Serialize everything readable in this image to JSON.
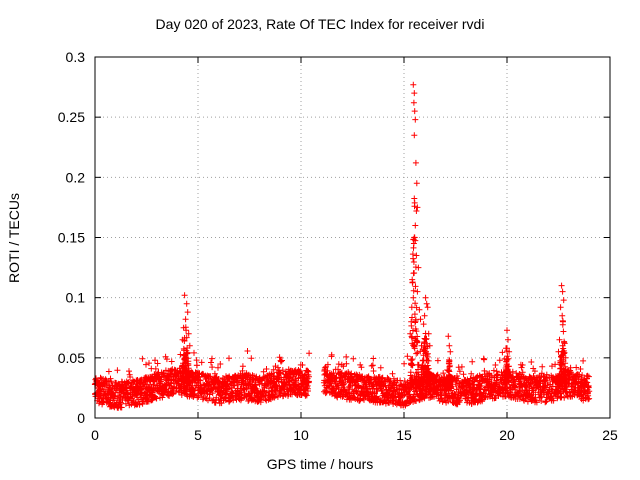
{
  "chart_data": {
    "type": "scatter",
    "title": "Day 020 of 2023, Rate Of TEC Index for receiver rvdi",
    "xlabel": "GPS time / hours",
    "ylabel": "ROTI / TECUs",
    "xlim": [
      0,
      25
    ],
    "ylim": [
      0,
      0.3
    ],
    "xticks": [
      "0",
      "5",
      "10",
      "15",
      "20",
      "25"
    ],
    "yticks": [
      "0",
      "0.05",
      "0.1",
      "0.15",
      "0.2",
      "0.25",
      "0.3"
    ],
    "grid": true,
    "marker": "+",
    "color": "#ff0000",
    "data_gap_hours": [
      10.4,
      11.1
    ],
    "baseline": [
      [
        0.0,
        0.025
      ],
      [
        1.0,
        0.02
      ],
      [
        2.0,
        0.022
      ],
      [
        3.0,
        0.028
      ],
      [
        3.5,
        0.03
      ],
      [
        4.0,
        0.032
      ],
      [
        5.0,
        0.028
      ],
      [
        6.0,
        0.024
      ],
      [
        7.0,
        0.027
      ],
      [
        8.0,
        0.025
      ],
      [
        9.0,
        0.03
      ],
      [
        10.0,
        0.03
      ],
      [
        10.4,
        0.03
      ],
      [
        11.1,
        0.032
      ],
      [
        12.0,
        0.028
      ],
      [
        13.0,
        0.026
      ],
      [
        14.0,
        0.024
      ],
      [
        15.0,
        0.022
      ],
      [
        16.0,
        0.028
      ],
      [
        17.0,
        0.025
      ],
      [
        18.0,
        0.022
      ],
      [
        19.0,
        0.027
      ],
      [
        20.0,
        0.03
      ],
      [
        21.0,
        0.025
      ],
      [
        22.0,
        0.025
      ],
      [
        23.0,
        0.03
      ],
      [
        24.0,
        0.025
      ]
    ],
    "peaks": [
      {
        "x": [
          4.2,
          4.6
        ],
        "y_max": 0.102
      },
      {
        "x": [
          15.3,
          15.7
        ],
        "y_max": 0.277
      },
      {
        "x": [
          15.8,
          16.3
        ],
        "y_max": 0.1
      },
      {
        "x": [
          17.1,
          17.3
        ],
        "y_max": 0.068
      },
      {
        "x": [
          19.9,
          20.1
        ],
        "y_max": 0.073
      },
      {
        "x": [
          22.5,
          22.9
        ],
        "y_max": 0.11
      }
    ],
    "points": [
      [
        4.35,
        0.102
      ],
      [
        4.45,
        0.095
      ],
      [
        4.5,
        0.088
      ],
      [
        4.4,
        0.082
      ],
      [
        4.3,
        0.075
      ],
      [
        4.55,
        0.07
      ],
      [
        4.25,
        0.065
      ],
      [
        4.6,
        0.06
      ],
      [
        15.45,
        0.277
      ],
      [
        15.5,
        0.27
      ],
      [
        15.48,
        0.262
      ],
      [
        15.52,
        0.255
      ],
      [
        15.55,
        0.248
      ],
      [
        15.5,
        0.235
      ],
      [
        15.58,
        0.212
      ],
      [
        15.62,
        0.195
      ],
      [
        15.65,
        0.175
      ],
      [
        15.6,
        0.172
      ],
      [
        15.55,
        0.16
      ],
      [
        15.52,
        0.15
      ],
      [
        15.48,
        0.145
      ],
      [
        15.6,
        0.135
      ],
      [
        15.7,
        0.125
      ],
      [
        15.4,
        0.115
      ],
      [
        15.45,
        0.1
      ],
      [
        15.65,
        0.105
      ],
      [
        15.75,
        0.09
      ],
      [
        15.8,
        0.082
      ],
      [
        15.35,
        0.08
      ],
      [
        15.3,
        0.07
      ],
      [
        15.4,
        0.062
      ],
      [
        15.85,
        0.06
      ],
      [
        16.05,
        0.1
      ],
      [
        16.1,
        0.095
      ],
      [
        16.15,
        0.092
      ],
      [
        16.0,
        0.085
      ],
      [
        15.95,
        0.078
      ],
      [
        16.2,
        0.07
      ],
      [
        16.25,
        0.06
      ],
      [
        17.15,
        0.068
      ],
      [
        17.2,
        0.06
      ],
      [
        17.25,
        0.055
      ],
      [
        20.0,
        0.073
      ],
      [
        20.05,
        0.065
      ],
      [
        19.95,
        0.058
      ],
      [
        20.1,
        0.055
      ],
      [
        22.65,
        0.11
      ],
      [
        22.7,
        0.105
      ],
      [
        22.75,
        0.098
      ],
      [
        22.6,
        0.092
      ],
      [
        22.68,
        0.085
      ],
      [
        22.72,
        0.08
      ],
      [
        22.55,
        0.065
      ],
      [
        22.8,
        0.062
      ],
      [
        22.5,
        0.055
      ],
      [
        22.85,
        0.05
      ]
    ]
  }
}
